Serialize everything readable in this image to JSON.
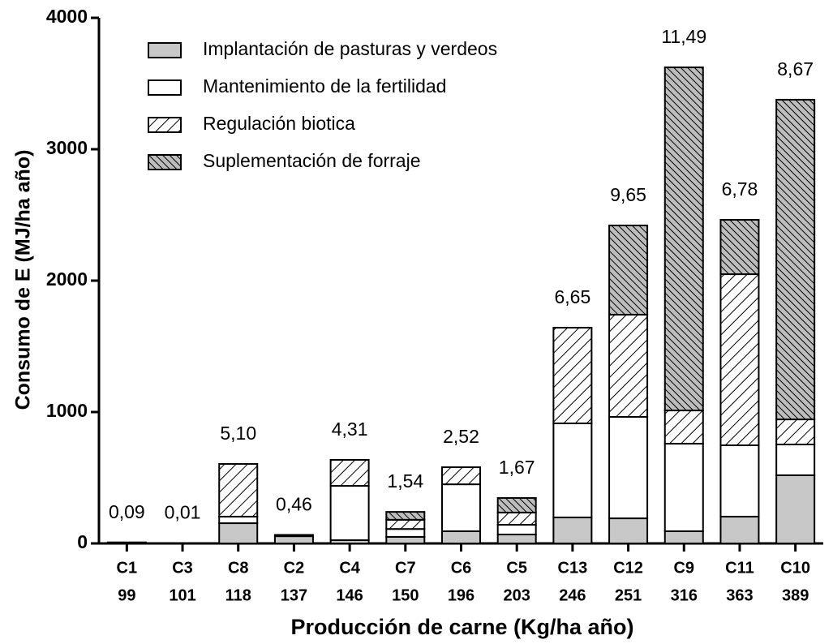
{
  "chart_data": {
    "type": "stacked-bar",
    "ylabel": "Consumo de E (MJ/ha año)",
    "xlabel": "Producción de carne (Kg/ha año)",
    "categories": [
      "C1",
      "C3",
      "C8",
      "C2",
      "C4",
      "C7",
      "C6",
      "C5",
      "C13",
      "C12",
      "C9",
      "C11",
      "C10"
    ],
    "production": [
      99,
      101,
      118,
      137,
      146,
      150,
      196,
      203,
      246,
      251,
      316,
      363,
      389
    ],
    "annotations": [
      "0,09",
      "0,01",
      "5,10",
      "0,46",
      "4,31",
      "1,54",
      "2,52",
      "1,67",
      "6,65",
      "9,65",
      "11,49",
      "6,78",
      "8,67"
    ],
    "series": [
      {
        "name": "Implantación de pasturas y verdeos",
        "color": "#c8c8c8",
        "hatch": "none",
        "values": [
          0,
          0,
          154,
          55,
          25,
          50,
          93,
          68,
          198,
          191,
          93,
          204,
          519
        ]
      },
      {
        "name": "Mantenimiento de la fertilidad",
        "color": "#ffffff",
        "hatch": "none",
        "values": [
          8,
          3,
          50,
          10,
          413,
          60,
          357,
          74,
          716,
          772,
          666,
          543,
          234
        ]
      },
      {
        "name": "Regulación biotica",
        "color": "#ffffff",
        "hatch": "sparse",
        "values": [
          0,
          0,
          401,
          0,
          198,
          70,
          130,
          93,
          728,
          778,
          253,
          1302,
          191
        ]
      },
      {
        "name": "Suplementación de forraje",
        "color": "#ffffff",
        "hatch": "dense",
        "values": [
          0,
          0,
          0,
          0,
          0,
          60,
          0,
          111,
          0,
          679,
          2611,
          414,
          2433
        ]
      }
    ],
    "ylim": [
      0,
      4000
    ],
    "yticks": [
      0,
      1000,
      2000,
      3000,
      4000
    ],
    "legend": "top-left"
  }
}
